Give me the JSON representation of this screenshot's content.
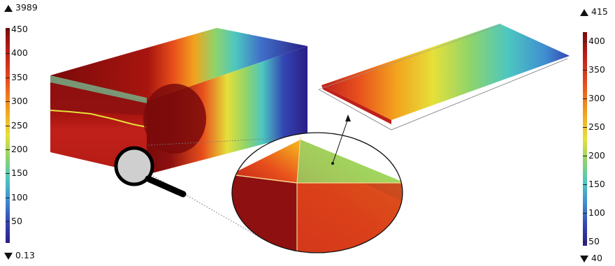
{
  "left_colorbar": {
    "max_label": "3989",
    "min_label": "0.13",
    "ticks": [
      "450",
      "400",
      "350",
      "300",
      "250",
      "200",
      "150",
      "100",
      "50"
    ]
  },
  "right_colorbar": {
    "max_label": "415",
    "min_label": "40",
    "ticks": [
      "400",
      "350",
      "300",
      "250",
      "200",
      "150",
      "100",
      "50"
    ]
  },
  "colors": {
    "dark_red": "#7a0a0a",
    "red": "#c0201a",
    "orange": "#e8501c",
    "yellow": "#e6e03a",
    "cyan": "#4dc7c0",
    "blue": "#3446b4",
    "dark_blue": "#2a1e85"
  },
  "icons": [
    "magnifier-icon",
    "max-arrow-icon",
    "min-arrow-icon"
  ]
}
